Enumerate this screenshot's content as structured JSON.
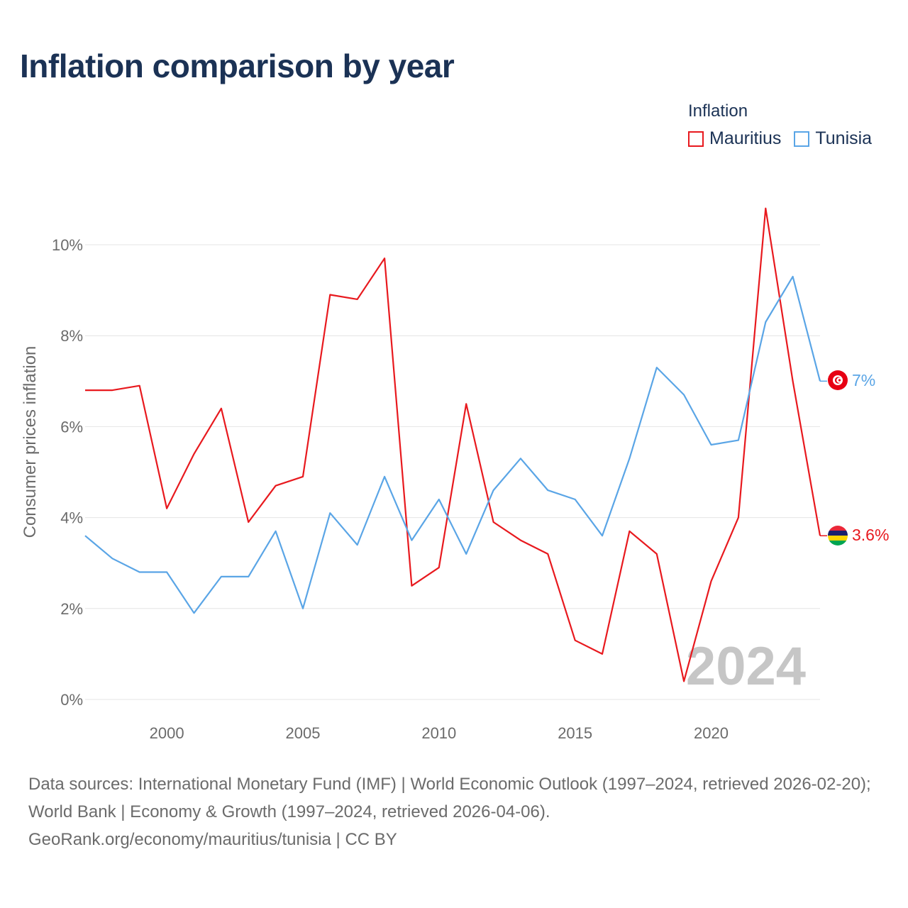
{
  "title": "Inflation comparison by year",
  "legend": {
    "title": "Inflation",
    "items": [
      {
        "label": "Mauritius",
        "color": "#e8191e"
      },
      {
        "label": "Tunisia",
        "color": "#5aa5e6"
      }
    ]
  },
  "year_watermark": "2024",
  "footer": {
    "sources": "Data sources: International Monetary Fund (IMF) | World Economic Outlook (1997–2024, retrieved 2026-02-20); World Bank | Economy & Growth (1997–2024, retrieved 2026-04-06).",
    "attribution": "GeoRank.org/economy/mauritius/tunisia | CC BY"
  },
  "chart_data": {
    "type": "line",
    "title": "Inflation comparison by year",
    "xlabel": "",
    "ylabel": "Consumer prices inflation",
    "xlim": [
      1997,
      2024
    ],
    "ylim": [
      0,
      10
    ],
    "xticks": [
      2000,
      2005,
      2010,
      2015,
      2020
    ],
    "xtick_labels": [
      "2000",
      "2005",
      "2010",
      "2015",
      "2020"
    ],
    "yticks": [
      0,
      2,
      4,
      6,
      8,
      10
    ],
    "ytick_labels": [
      "0%",
      "2%",
      "4%",
      "6%",
      "8%",
      "10%"
    ],
    "grid": true,
    "x": [
      1997,
      1998,
      1999,
      2000,
      2001,
      2002,
      2003,
      2004,
      2005,
      2006,
      2007,
      2008,
      2009,
      2010,
      2011,
      2012,
      2013,
      2014,
      2015,
      2016,
      2017,
      2018,
      2019,
      2020,
      2021,
      2022,
      2023,
      2024
    ],
    "series": [
      {
        "name": "Mauritius",
        "color": "#e8191e",
        "end_label": "3.6%",
        "flag": "mauritius-flag-icon",
        "values": [
          6.8,
          6.8,
          6.9,
          4.2,
          5.4,
          6.4,
          3.9,
          4.7,
          4.9,
          8.9,
          8.8,
          9.7,
          2.5,
          2.9,
          6.5,
          3.9,
          3.5,
          3.2,
          1.3,
          1.0,
          3.7,
          3.2,
          0.4,
          2.6,
          4.0,
          10.8,
          7.0,
          3.6
        ]
      },
      {
        "name": "Tunisia",
        "color": "#5aa5e6",
        "end_label": "7%",
        "flag": "tunisia-flag-icon",
        "values": [
          3.6,
          3.1,
          2.8,
          2.8,
          1.9,
          2.7,
          2.7,
          3.7,
          2.0,
          4.1,
          3.4,
          4.9,
          3.5,
          4.4,
          3.2,
          4.6,
          5.3,
          4.6,
          4.4,
          3.6,
          5.3,
          7.3,
          6.7,
          5.6,
          5.7,
          8.3,
          9.3,
          7.0
        ]
      }
    ]
  }
}
